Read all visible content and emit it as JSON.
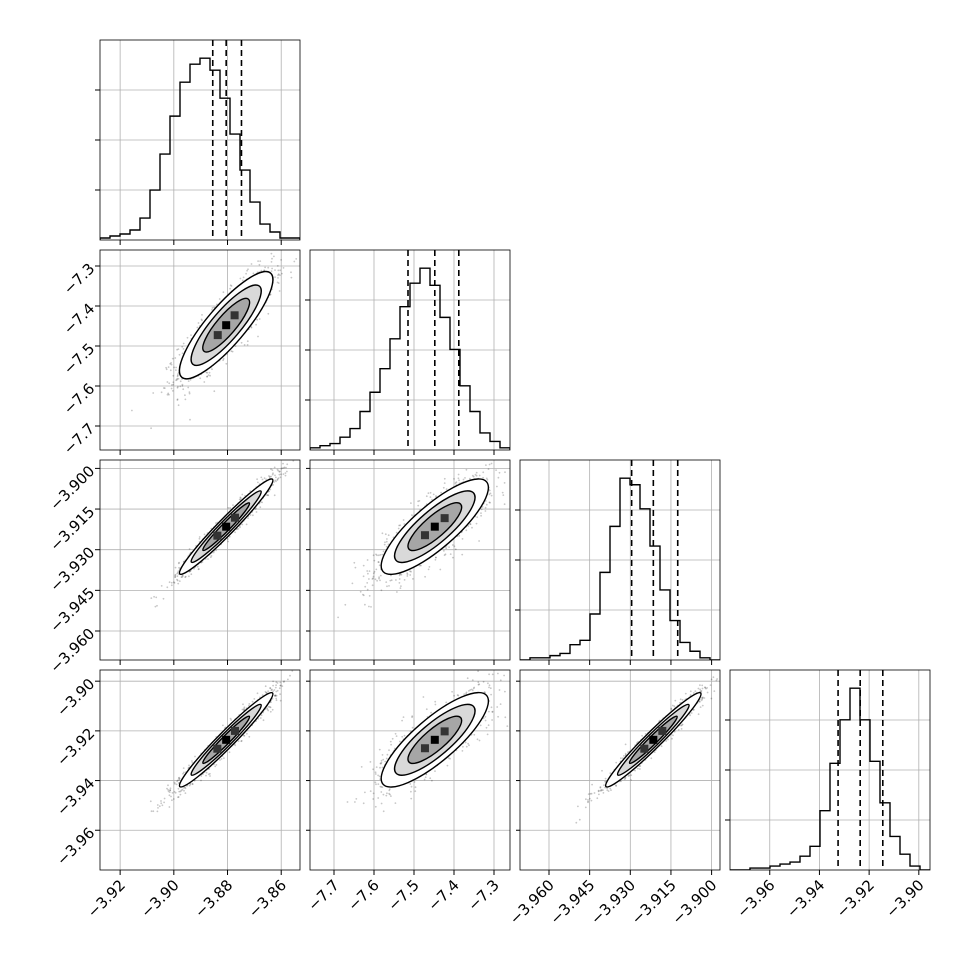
{
  "chart_data": {
    "type": "corner",
    "title": "",
    "grid": true,
    "parameters": [
      {
        "xlabel": "",
        "ylabel": "",
        "range": [
          -3.9275,
          -3.853
        ],
        "center": -3.8805,
        "spread": 0.0087,
        "q16": -3.8855,
        "q50": -3.8805,
        "q84": -3.8748,
        "xticks": [
          -3.92,
          -3.9,
          -3.88,
          -3.86
        ],
        "xtick_labels": [
          "−3.92",
          "−3.90",
          "−3.88",
          "−3.86"
        ],
        "yticks": [],
        "ytick_labels": [],
        "histogram": [
          0.01,
          0.02,
          0.03,
          0.05,
          0.11,
          0.25,
          0.43,
          0.62,
          0.79,
          0.88,
          0.91,
          0.85,
          0.71,
          0.53,
          0.35,
          0.19,
          0.08,
          0.04,
          0.01,
          0.01
        ]
      },
      {
        "xlabel": "",
        "ylabel": "",
        "range": [
          -7.76,
          -7.26
        ],
        "center": -7.448,
        "spread": 0.067,
        "q16": -7.515,
        "q50": -7.448,
        "q84": -7.388,
        "xticks": [
          -7.7,
          -7.6,
          -7.5,
          -7.4,
          -7.3
        ],
        "xtick_labels": [
          "−7.7",
          "−7.6",
          "−7.5",
          "−7.4",
          "−7.3"
        ],
        "yticks": [
          -7.3,
          -7.4,
          -7.5,
          -7.6,
          -7.7
        ],
        "ytick_labels": [
          "−7.3",
          "−7.4",
          "−7.5",
          "−7.6",
          "−7.7"
        ],
        "histogram": [
          0.01,
          0.02,
          0.03,
          0.06,
          0.1,
          0.18,
          0.27,
          0.38,
          0.52,
          0.67,
          0.78,
          0.85,
          0.77,
          0.62,
          0.47,
          0.3,
          0.18,
          0.08,
          0.04,
          0.01
        ]
      },
      {
        "xlabel": "",
        "ylabel": "",
        "range": [
          -3.9707,
          -3.8969
        ],
        "center": -3.9215,
        "spread": 0.0088,
        "q16": -3.9295,
        "q50": -3.9215,
        "q84": -3.9125,
        "xticks": [
          -3.96,
          -3.945,
          -3.93,
          -3.915,
          -3.9
        ],
        "xtick_labels": [
          "−3.960",
          "−3.945",
          "−3.930",
          "−3.915",
          "−3.900"
        ],
        "yticks": [
          -3.9,
          -3.915,
          -3.93,
          -3.945,
          -3.96
        ],
        "ytick_labels": [
          "−3.900",
          "−3.915",
          "−3.930",
          "−3.945",
          "−3.960"
        ],
        "histogram": [
          0.0,
          0.01,
          0.01,
          0.02,
          0.03,
          0.07,
          0.09,
          0.21,
          0.4,
          0.61,
          0.83,
          0.8,
          0.69,
          0.52,
          0.32,
          0.18,
          0.08,
          0.04,
          0.01,
          0.0
        ]
      },
      {
        "xlabel": "",
        "ylabel": "",
        "range": [
          -3.976,
          -3.8955
        ],
        "center": -3.9236,
        "spread": 0.0095,
        "q16": -3.9325,
        "q50": -3.9236,
        "q84": -3.9145,
        "xticks": [
          -3.96,
          -3.94,
          -3.92,
          -3.9
        ],
        "xtick_labels": [
          "−3.96",
          "−3.94",
          "−3.92",
          "−3.90"
        ],
        "yticks": [
          -3.9,
          -3.92,
          -3.94,
          -3.96
        ],
        "ytick_labels": [
          "−3.90",
          "−3.92",
          "−3.94",
          "−3.96"
        ],
        "histogram": [
          0.0,
          0.0,
          0.01,
          0.01,
          0.02,
          0.03,
          0.04,
          0.07,
          0.12,
          0.3,
          0.54,
          0.76,
          0.92,
          0.76,
          0.55,
          0.34,
          0.17,
          0.08,
          0.02,
          0.0
        ]
      }
    ],
    "correlations": [
      [
        1,
        0.85,
        0.97,
        0.97
      ],
      [
        0.85,
        1,
        0.82,
        0.82
      ],
      [
        0.97,
        0.82,
        1,
        0.97
      ],
      [
        0.97,
        0.82,
        0.97,
        1
      ]
    ],
    "contour_levels_sigma": [
      1,
      1.5,
      2
    ],
    "scatter_color": "#000000",
    "line_color": "#000000"
  }
}
